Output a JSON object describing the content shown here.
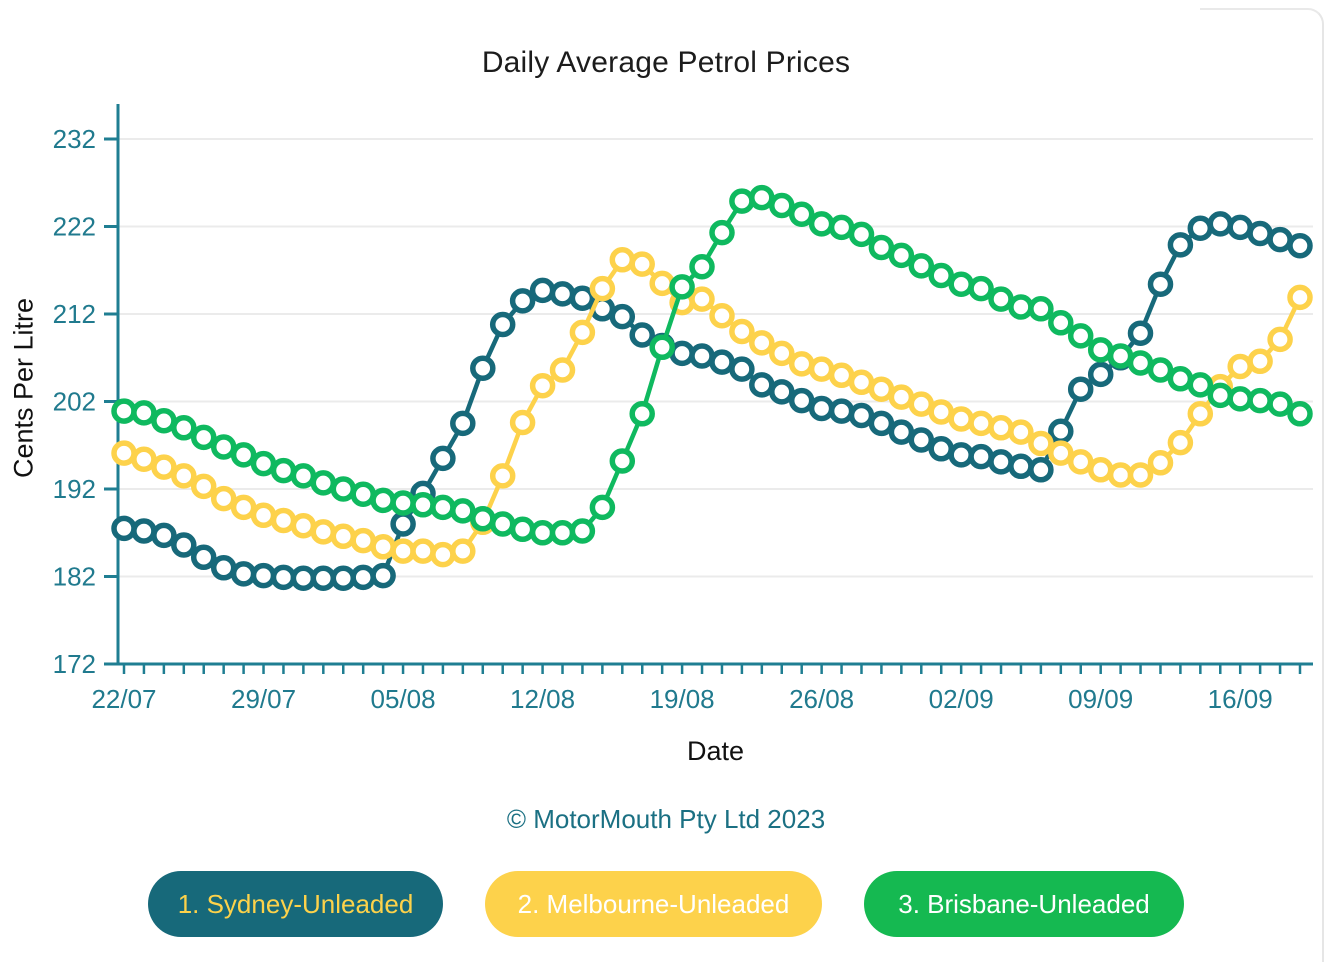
{
  "title": "Daily Average Petrol Prices",
  "y_axis_title": "Cents Per Litre",
  "x_axis_title": "Date",
  "copyright": "© MotorMouth Pty Ltd 2023",
  "colors": {
    "sydney": "#17697a",
    "melbourne": "#fdd24b",
    "brisbane": "#0fb95f",
    "axis": "#1f7e92",
    "tick_label": "#207a8e",
    "gridline": "#ebebeb",
    "title_text": "#1c1c1c",
    "copyright_text": "#1b7083"
  },
  "legend_buttons": [
    {
      "label": "1. Sydney-Unleaded",
      "bg": "#17697a",
      "text_color": "#fdd24a"
    },
    {
      "label": "2. Melbourne-Unleaded",
      "bg": "#fdd24b",
      "text_color": "#ffffff"
    },
    {
      "label": "3. Brisbane-Unleaded",
      "bg": "#15b951",
      "text_color": "#ffffff"
    }
  ],
  "chart_data": {
    "type": "line",
    "title": "Daily Average Petrol Prices",
    "xlabel": "Date",
    "ylabel": "Cents Per Litre",
    "x_tick_labels": [
      "22/07",
      "29/07",
      "05/08",
      "12/08",
      "19/08",
      "26/08",
      "02/09",
      "09/09",
      "16/09"
    ],
    "x_tick_days": [
      0,
      7,
      14,
      21,
      28,
      35,
      42,
      49,
      56
    ],
    "n_days": 60,
    "x_note": "one point per day, 22/07 to 19/09",
    "y_ticks": [
      232,
      222,
      212,
      202,
      192,
      182,
      172
    ],
    "ylim": [
      172,
      236
    ],
    "grid": "horizontal",
    "legend_position": "bottom",
    "series": [
      {
        "name": "Sydney-Unleaded",
        "color": "#17697a",
        "values": [
          187.5,
          187.2,
          186.7,
          185.6,
          184.2,
          183.0,
          182.3,
          182.1,
          181.9,
          181.8,
          181.8,
          181.8,
          181.9,
          182.1,
          188.0,
          191.5,
          195.5,
          199.5,
          205.8,
          210.8,
          213.5,
          214.7,
          214.3,
          213.8,
          212.6,
          211.7,
          209.6,
          208.4,
          207.5,
          207.2,
          206.5,
          205.7,
          203.9,
          203.1,
          202.1,
          201.2,
          200.9,
          200.4,
          199.5,
          198.5,
          197.6,
          196.6,
          195.9,
          195.7,
          195.1,
          194.6,
          194.2,
          198.6,
          203.4,
          205.1,
          207.0,
          209.8,
          215.4,
          219.9,
          221.8,
          222.3,
          221.9,
          221.2,
          220.5,
          219.8
        ]
      },
      {
        "name": "Melbourne-Unleaded",
        "color": "#fdd24b",
        "values": [
          196.1,
          195.4,
          194.5,
          193.5,
          192.3,
          190.9,
          189.9,
          189.0,
          188.4,
          187.8,
          187.1,
          186.6,
          186.1,
          185.4,
          184.9,
          184.9,
          184.5,
          184.9,
          188.2,
          193.5,
          199.6,
          203.8,
          205.6,
          209.9,
          214.9,
          218.2,
          217.7,
          215.5,
          213.3,
          213.7,
          211.8,
          210.0,
          208.7,
          207.5,
          206.3,
          205.7,
          205.0,
          204.2,
          203.4,
          202.5,
          201.7,
          200.8,
          200.0,
          199.5,
          199.0,
          198.5,
          197.2,
          196.1,
          195.1,
          194.2,
          193.6,
          193.6,
          195.0,
          197.3,
          200.6,
          203.7,
          206.0,
          206.6,
          209.1,
          213.9
        ]
      },
      {
        "name": "Brisbane-Unleaded",
        "color": "#0fb95f",
        "values": [
          200.9,
          200.7,
          199.8,
          199.0,
          197.9,
          196.8,
          195.9,
          194.9,
          194.1,
          193.5,
          192.7,
          192.0,
          191.4,
          190.7,
          190.4,
          190.2,
          189.9,
          189.5,
          188.6,
          188.0,
          187.4,
          187.0,
          187.0,
          187.2,
          189.9,
          195.2,
          200.6,
          208.2,
          215.1,
          217.4,
          221.3,
          224.9,
          225.3,
          224.4,
          223.4,
          222.3,
          221.9,
          221.1,
          219.6,
          218.7,
          217.5,
          216.4,
          215.4,
          214.9,
          213.7,
          212.8,
          212.6,
          211.0,
          209.5,
          207.9,
          207.2,
          206.4,
          205.6,
          204.6,
          203.9,
          202.7,
          202.3,
          202.1,
          201.7,
          200.6
        ]
      }
    ]
  }
}
